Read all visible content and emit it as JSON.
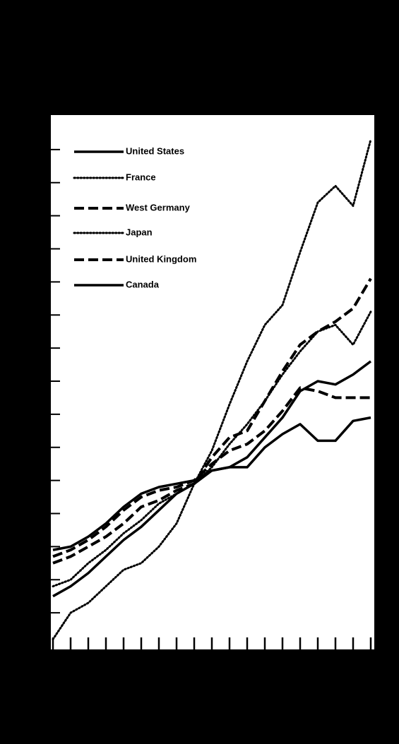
{
  "chart_data": {
    "type": "line",
    "categories": [
      null,
      null,
      null,
      null,
      null,
      null,
      null,
      null,
      null,
      null,
      null,
      null,
      null,
      null,
      null,
      null,
      null,
      null,
      null
    ],
    "series": [
      {
        "name": "United States",
        "color": "#000000",
        "dash": "solid",
        "values": [
          2.9,
          3.0,
          3.3,
          3.7,
          4.2,
          4.6,
          4.8,
          4.9,
          5.0,
          5.3,
          5.4,
          5.7,
          6.3,
          6.9,
          7.7,
          8.0,
          7.9,
          8.2,
          8.6
        ]
      },
      {
        "name": "France",
        "color": "#000000",
        "dash": "dotted",
        "values": [
          1.8,
          2.0,
          2.5,
          2.9,
          3.4,
          3.8,
          4.3,
          4.6,
          4.9,
          5.4,
          6.1,
          6.7,
          7.4,
          8.2,
          8.9,
          9.5,
          9.7,
          9.1,
          10.1
        ]
      },
      {
        "name": "West Germany",
        "color": "#000000",
        "dash": "dashed",
        "values": [
          2.5,
          2.7,
          3.0,
          3.3,
          3.7,
          4.2,
          4.4,
          4.7,
          4.9,
          5.7,
          6.3,
          6.5,
          7.4,
          8.3,
          9.1,
          9.5,
          9.8,
          10.2,
          11.1
        ]
      },
      {
        "name": "Japan",
        "color": "#000000",
        "dash": "dotted",
        "values": [
          0.2,
          1.0,
          1.3,
          1.8,
          2.3,
          2.5,
          3.0,
          3.7,
          4.9,
          5.9,
          7.3,
          8.6,
          9.7,
          10.3,
          11.9,
          13.4,
          13.9,
          13.3,
          15.3
        ]
      },
      {
        "name": "United Kingdom",
        "color": "#000000",
        "dash": "dashed",
        "values": [
          2.7,
          2.9,
          3.2,
          3.6,
          4.1,
          4.5,
          4.7,
          4.8,
          5.0,
          5.5,
          5.9,
          6.1,
          6.5,
          7.1,
          7.8,
          7.7,
          7.5,
          7.5,
          7.5
        ]
      },
      {
        "name": "Canada",
        "color": "#000000",
        "dash": "solid",
        "values": [
          1.5,
          1.8,
          2.2,
          2.7,
          3.2,
          3.6,
          4.1,
          4.6,
          4.9,
          5.3,
          5.4,
          5.4,
          6.0,
          6.4,
          6.7,
          6.2,
          6.2,
          6.8,
          6.9
        ]
      }
    ],
    "ylim": [
      0,
      16
    ],
    "yticks": [
      1,
      2,
      3,
      4,
      5,
      6,
      7,
      8,
      9,
      10,
      11,
      12,
      13,
      14,
      15
    ],
    "grid": false,
    "legend": "top-left"
  }
}
